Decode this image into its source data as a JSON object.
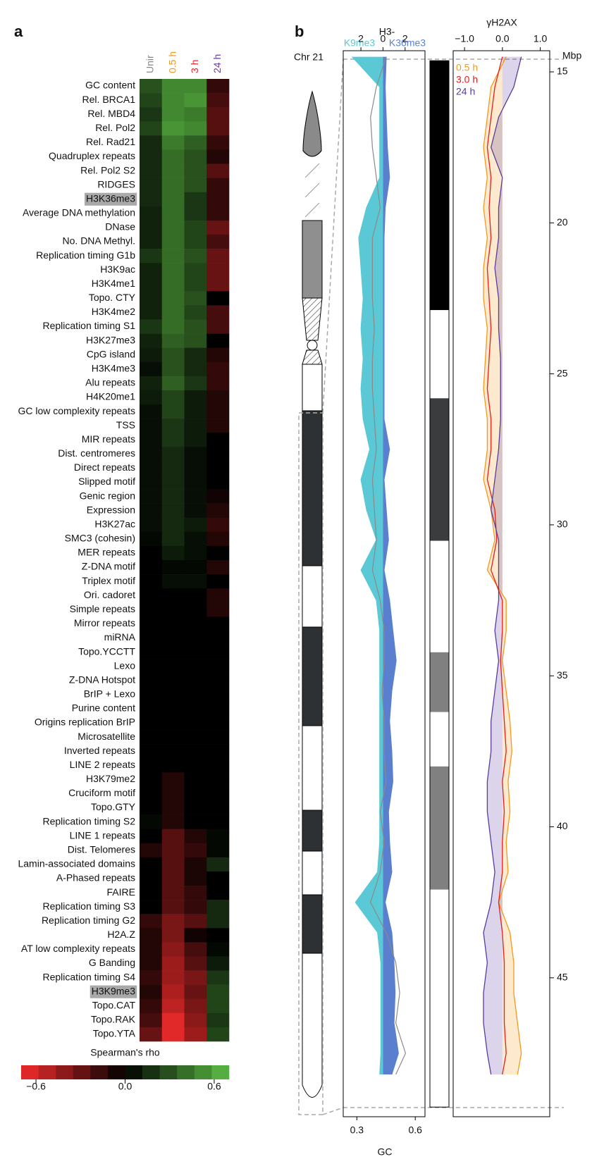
{
  "chart_data": [
    {
      "type": "heatmap",
      "panel": "a",
      "rows": [
        "GC content",
        "Rel. BRCA1",
        "Rel. MBD4",
        "Rel. Pol2",
        "Rel. Rad21",
        "Quadruplex repeats",
        "Rel. Pol2 S2",
        "RIDGES",
        "H3K36me3",
        "Average DNA methylation",
        "DNase",
        "No. DNA Methyl.",
        "Replication timing G1b",
        "H3K9ac",
        "H3K4me1",
        "Topo. CTY",
        "H3K4me2",
        "Replication timing S1",
        "H3K27me3",
        "CpG island",
        "H3K4me3",
        "Alu repeats",
        "H4K20me1",
        "GC low complexity repeats",
        "TSS",
        "MIR repeats",
        "Dist. centromeres",
        "Direct repeats",
        "Slipped motif",
        "Genic region",
        "Expression",
        "H3K27ac",
        "SMC3 (cohesin)",
        "MER repeats",
        "Z-DNA motif",
        "Triplex motif",
        "Ori. cadoret",
        "Simple repeats",
        "Mirror repeats",
        "miRNA",
        "Topo.YCCTT",
        "Lexo",
        "Z-DNA Hotspot",
        "BrIP + Lexo",
        "Purine content",
        "Origins replication BrIP",
        "Microsatellite",
        "Inverted repeats",
        "LINE 2 repeats",
        "H3K79me2",
        "Cruciform motif",
        "Topo.GTY",
        "Replication timing S2",
        "LINE 1 repeats",
        "Dist. Telomeres",
        "Lamin-associated domains",
        "A-Phased repeats",
        "FAIRE",
        "Replication timing S3",
        "Replication timing G2",
        "H2A.Z",
        "AT low complexity repeats",
        "G Banding",
        "Replication timing S4",
        "H3K9me3",
        "Topo.CAT",
        "Topo.RAK",
        "Topo.YTA"
      ],
      "highlight_rows": [
        8,
        64
      ],
      "series": [
        {
          "name": "Unir",
          "color": "#888888",
          "values": [
            0.3,
            0.25,
            0.2,
            0.25,
            0.15,
            0.15,
            0.15,
            0.15,
            0.15,
            0.12,
            0.12,
            0.12,
            0.2,
            0.12,
            0.12,
            0.12,
            0.12,
            0.2,
            0.12,
            0.1,
            0.05,
            0.12,
            0.1,
            0.05,
            0.05,
            0.05,
            0.05,
            0.05,
            0.05,
            0.05,
            0.05,
            0.05,
            0.03,
            0,
            0,
            0,
            0,
            0,
            0,
            0,
            0,
            0,
            0,
            0,
            0,
            0,
            0,
            0,
            0,
            0,
            0,
            0,
            0.03,
            0,
            -0.1,
            0,
            0,
            0,
            0,
            -0.15,
            -0.1,
            -0.1,
            -0.1,
            -0.15,
            -0.1,
            -0.15,
            -0.2,
            -0.3
          ]
        },
        {
          "name": "0.5 h",
          "color": "#f0961e",
          "values": [
            0.5,
            0.5,
            0.5,
            0.55,
            0.45,
            0.4,
            0.4,
            0.4,
            0.4,
            0.4,
            0.4,
            0.4,
            0.4,
            0.4,
            0.4,
            0.4,
            0.4,
            0.4,
            0.35,
            0.3,
            0.3,
            0.35,
            0.25,
            0.25,
            0.2,
            0.2,
            0.15,
            0.15,
            0.15,
            0.15,
            0.15,
            0.15,
            0.15,
            0.1,
            0.03,
            0.05,
            0,
            0,
            0,
            0,
            0,
            0,
            0,
            0,
            0,
            0,
            0,
            0,
            0,
            -0.1,
            -0.1,
            -0.1,
            -0.1,
            -0.25,
            -0.25,
            -0.25,
            -0.25,
            -0.25,
            -0.25,
            -0.35,
            -0.35,
            -0.4,
            -0.45,
            -0.45,
            -0.5,
            -0.55,
            -0.65,
            -0.65
          ]
        },
        {
          "name": "3 h",
          "color": "#e8262a",
          "values": [
            0.5,
            0.55,
            0.45,
            0.5,
            0.35,
            0.3,
            0.3,
            0.3,
            0.2,
            0.2,
            0.25,
            0.25,
            0.3,
            0.25,
            0.25,
            0.3,
            0.25,
            0.3,
            0.3,
            0.15,
            0.15,
            0.2,
            0.1,
            0.1,
            0.1,
            0.1,
            0.05,
            0.05,
            0.05,
            0.05,
            0.05,
            0.1,
            0.05,
            0.05,
            0.03,
            0.05,
            0,
            0,
            0,
            0,
            0,
            0,
            0,
            0,
            0,
            0,
            0,
            0,
            0,
            0,
            0,
            0,
            0,
            -0.1,
            -0.15,
            -0.08,
            -0.08,
            -0.15,
            -0.15,
            -0.25,
            -0.05,
            -0.2,
            -0.25,
            -0.35,
            -0.3,
            -0.35,
            -0.4,
            -0.45
          ]
        },
        {
          "name": "24 h",
          "color": "#6a3d9a",
          "values": [
            -0.15,
            -0.2,
            -0.25,
            -0.25,
            -0.15,
            -0.1,
            -0.25,
            -0.15,
            -0.15,
            -0.15,
            -0.3,
            -0.2,
            -0.3,
            -0.3,
            -0.3,
            0,
            -0.2,
            -0.2,
            0,
            -0.1,
            -0.15,
            -0.15,
            -0.1,
            -0.1,
            -0.1,
            0,
            0,
            0,
            0,
            -0.05,
            -0.1,
            -0.15,
            -0.1,
            0,
            -0.1,
            0,
            -0.1,
            -0.1,
            0,
            0,
            0,
            0,
            0,
            0,
            0,
            0,
            0,
            0,
            0,
            0,
            0,
            0,
            0,
            0.03,
            0.03,
            0.15,
            0,
            0,
            0.15,
            0.15,
            0,
            0.03,
            0.1,
            0.2,
            0.25,
            0.25,
            0.2,
            0.25
          ]
        }
      ],
      "colorbar_title": "Spearman's rho",
      "clim": [
        -0.7,
        0.7
      ],
      "cticks": [
        {
          "value": -0.6,
          "label": "−0.6"
        },
        {
          "value": 0,
          "label": "0.0"
        },
        0.6
      ],
      "low_color": "#f22c2c",
      "mid_color": "#000000",
      "high_color": "#5dbe45"
    },
    {
      "type": "tracks",
      "panel": "b",
      "chromosome": "Chr 21",
      "y_label": "Mbp",
      "ylim": [
        14.3,
        49.6
      ],
      "yticks": [
        15,
        20,
        25,
        30,
        35,
        40,
        45
      ],
      "positions": [
        14.5,
        15.5,
        16.5,
        17.5,
        18.5,
        19.5,
        20.5,
        21.5,
        22.5,
        23.5,
        24.5,
        25.5,
        26.5,
        27.5,
        28.5,
        29.5,
        30.5,
        31.5,
        32.5,
        33.5,
        34.5,
        35.5,
        36.5,
        37.5,
        38.5,
        39.5,
        40.5,
        41.5,
        42.5,
        43.5,
        44.5,
        45.5,
        46.5,
        47.5,
        48.2
      ],
      "histone": {
        "title": "H3-",
        "xlim": [
          -3.6,
          3.8
        ],
        "xticks": [
          {
            "value": -2,
            "label": "2"
          },
          0,
          2
        ],
        "series": [
          {
            "name": "K9me3",
            "color": "#5bc8d5",
            "values": [
              -2.8,
              -0.3,
              -0.3,
              -0.3,
              -0.3,
              -1.5,
              -2.2,
              -2.0,
              -1.8,
              -2.0,
              -1.8,
              -2.0,
              -1.8,
              -1.2,
              -2.0,
              -1.5,
              -0.6,
              -2.0,
              -0.6,
              -0.3,
              -0.3,
              -0.3,
              -0.3,
              -0.3,
              -0.3,
              -0.3,
              -0.3,
              -0.5,
              -2.5,
              -0.5,
              -0.2,
              -0.2,
              -0.2,
              -0.2,
              -0.3
            ]
          },
          {
            "name": "K36me3",
            "color": "#5b7fcf",
            "values": [
              0.3,
              0.2,
              0.3,
              0.4,
              0.6,
              0.2,
              0.1,
              0.1,
              0.1,
              0.1,
              0.1,
              0.1,
              0.1,
              0.6,
              0.1,
              0.3,
              0.5,
              0.1,
              0.6,
              0.9,
              1.2,
              0.8,
              0.6,
              0.8,
              0.9,
              0.5,
              0.6,
              0.8,
              0.2,
              0.8,
              1.0,
              1.1,
              1.0,
              1.4,
              0.8
            ]
          }
        ],
        "gc_label": "GC",
        "gc_color": "#8a8a8a",
        "gc_xlim": [
          0.23,
          0.65
        ],
        "gc_xticks": [
          0.3,
          0.6
        ],
        "gc_values": [
          0.45,
          0.4,
          0.37,
          0.38,
          0.4,
          0.42,
          0.38,
          0.38,
          0.38,
          0.39,
          0.38,
          0.38,
          0.39,
          0.4,
          0.38,
          0.39,
          0.4,
          0.38,
          0.42,
          0.44,
          0.44,
          0.43,
          0.44,
          0.44,
          0.45,
          0.42,
          0.44,
          0.42,
          0.37,
          0.45,
          0.5,
          0.52,
          0.5,
          0.55,
          0.5
        ]
      },
      "domains": [
        {
          "start": 14.63,
          "end": 22.89,
          "color": "#000000"
        },
        {
          "start": 22.89,
          "end": 25.81,
          "color": "#ffffff"
        },
        {
          "start": 25.81,
          "end": 30.53,
          "color": "#3a3c3e"
        },
        {
          "start": 30.53,
          "end": 34.22,
          "color": "#ffffff"
        },
        {
          "start": 34.22,
          "end": 36.2,
          "color": "#808080"
        },
        {
          "start": 36.2,
          "end": 38.0,
          "color": "#ffffff"
        },
        {
          "start": 38.0,
          "end": 42.08,
          "color": "#808080"
        },
        {
          "start": 42.08,
          "end": 49.28,
          "color": "#ffffff"
        }
      ],
      "h2ax": {
        "title": "γH2AX",
        "xlim": [
          -1.3,
          1.25
        ],
        "xticks": [
          {
            "value": -1,
            "label": "−1.0"
          },
          {
            "value": 0,
            "label": "0.0"
          },
          {
            "value": 1,
            "label": "1.0"
          }
        ],
        "series": [
          {
            "name": "0.5 h",
            "color": "#f39a1e",
            "values": [
              0.1,
              -0.3,
              -0.4,
              -0.5,
              -0.4,
              -0.5,
              -0.4,
              -0.5,
              -0.5,
              -0.4,
              -0.45,
              -0.5,
              -0.4,
              -0.4,
              -0.5,
              -0.3,
              -0.2,
              -0.4,
              0.1,
              0.1,
              0.0,
              0.1,
              0.2,
              0.25,
              0.15,
              0.2,
              0.1,
              0.15,
              -0.1,
              0.2,
              0.3,
              0.3,
              0.4,
              0.5,
              0.4
            ]
          },
          {
            "name": "3.0 h",
            "color": "#e3201b",
            "values": [
              0.0,
              -0.2,
              -0.3,
              -0.4,
              -0.3,
              -0.35,
              -0.3,
              -0.4,
              -0.35,
              -0.3,
              -0.35,
              -0.4,
              -0.3,
              -0.3,
              -0.4,
              -0.2,
              -0.15,
              -0.3,
              0.0,
              0.0,
              -0.05,
              0.0,
              0.05,
              0.1,
              0.0,
              0.05,
              0.0,
              0.0,
              -0.1,
              0.0,
              0.05,
              0.05,
              0.05,
              0.1,
              0.0
            ]
          },
          {
            "name": "24 h",
            "color": "#5a3b9e",
            "values": [
              0.5,
              0.3,
              -0.1,
              -0.3,
              0.0,
              -0.1,
              -0.1,
              -0.2,
              -0.1,
              -0.1,
              -0.05,
              -0.05,
              -0.05,
              -0.1,
              -0.2,
              -0.3,
              -0.1,
              -0.1,
              -0.1,
              -0.2,
              -0.1,
              -0.2,
              -0.3,
              -0.3,
              -0.4,
              -0.4,
              -0.3,
              -0.2,
              -0.3,
              -0.5,
              -0.4,
              -0.5,
              -0.5,
              -0.4,
              -0.3
            ]
          }
        ]
      }
    }
  ]
}
